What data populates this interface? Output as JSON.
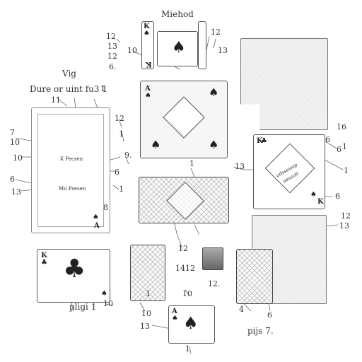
{
  "title": "Miehod",
  "subtitle_a": "Vig",
  "subtitle_b": "Dure or uint fu3 1",
  "card_text_top": "K Pecsen",
  "card_text_bottom": "Mu Psesen",
  "card_text_diag_a": "odsseuop",
  "card_text_diag_b": "uesso6",
  "caption_left": "pligi 1",
  "caption_right": "pijs 7.",
  "numbers": {
    "n1": "12",
    "n2": "13",
    "n3": "12",
    "n4": "6.",
    "n5": "10",
    "n6": "12",
    "n7": "13",
    "n8": "1",
    "n9": "11",
    "n10": "7",
    "n11": "10",
    "n12": "6",
    "n13": "13",
    "n14": "10",
    "n15": "1",
    "n16": "12",
    "n17": "1",
    "n18": "9.",
    "n19": "6",
    "n20": "1",
    "n21": "8",
    "n22": "1",
    "n23": "13",
    "n24": "12",
    "n25": "6",
    "n26": "16",
    "n27": "6",
    "n28": "1",
    "n29": "1",
    "n30": "6",
    "n31": "13",
    "n32": "12",
    "n33": "1412",
    "n34": "12.",
    "n35": "10",
    "n36": "10",
    "n37": "13",
    "n38": "1",
    "n39": "4",
    "n40": "6",
    "n41": "10",
    "n42": "1"
  },
  "cards": {
    "king_spade_rank": "K",
    "king_spade_suit": "♠",
    "ace_spade_rank": "A",
    "ace_spade_suit": "♠",
    "ace_tall_rank": "A",
    "ace_tall_suit": "♠",
    "king_club_rank": "K",
    "king_club_suit": "♣",
    "king_low_rank": "K",
    "king_low_suit": "♣",
    "ace_small_rank": "A",
    "ace_small_suit": "♠"
  }
}
